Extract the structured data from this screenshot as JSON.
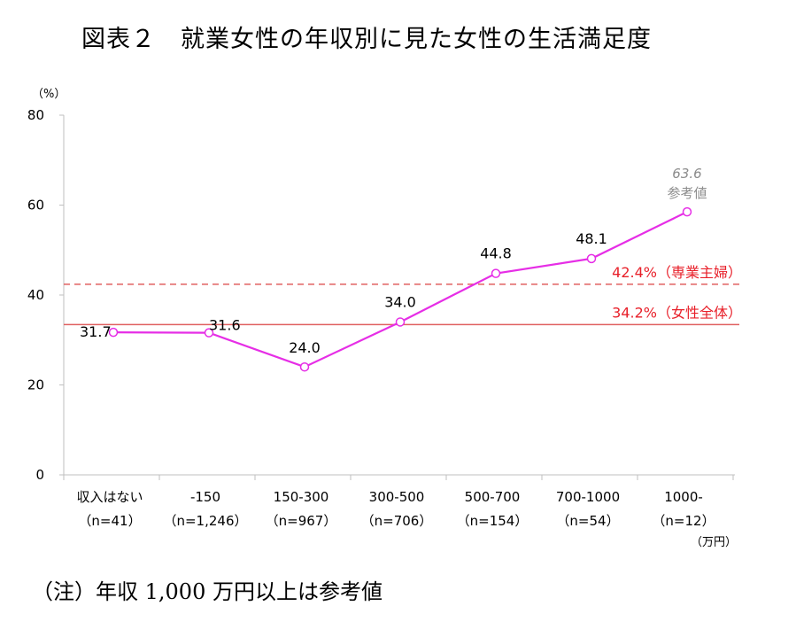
{
  "title": "図表２　就業女性の年収別に見た女性の生活満足度",
  "note": "（注）年収 1,000 万円以上は参考値",
  "chart_data": {
    "type": "line",
    "y_unit": "（%）",
    "x_unit": "（万円）",
    "ylim": [
      0,
      80
    ],
    "yticks": [
      0,
      20,
      40,
      60,
      80
    ],
    "grid": false,
    "categories": [
      {
        "label": "収入はない",
        "n": "（n=41）"
      },
      {
        "label": "-150",
        "n": "（n=1,246）"
      },
      {
        "label": "150-300",
        "n": "（n=967）"
      },
      {
        "label": "300-500",
        "n": "（n=706）"
      },
      {
        "label": "500-700",
        "n": "（n=154）"
      },
      {
        "label": "700-1000",
        "n": "（n=54）"
      },
      {
        "label": "1000-",
        "n": "（n=12）"
      }
    ],
    "series": [
      {
        "color": "#e62ee6",
        "values": [
          31.7,
          31.6,
          24.0,
          34.0,
          44.8,
          48.1,
          63.6
        ],
        "labels": [
          "31.7",
          "31.6",
          "24.0",
          "34.0",
          "44.8",
          "48.1",
          "63.6"
        ]
      }
    ],
    "last_point_note": "参考値",
    "reference_lines": [
      {
        "value": 42.4,
        "label": "42.4%（専業主婦）",
        "style": "dashed",
        "color": "#e06060",
        "text_color": "#e8202a"
      },
      {
        "value": 34.2,
        "label": "34.2%（女性全体）",
        "style": "solid",
        "color": "#e06060",
        "text_color": "#e8202a"
      }
    ]
  }
}
